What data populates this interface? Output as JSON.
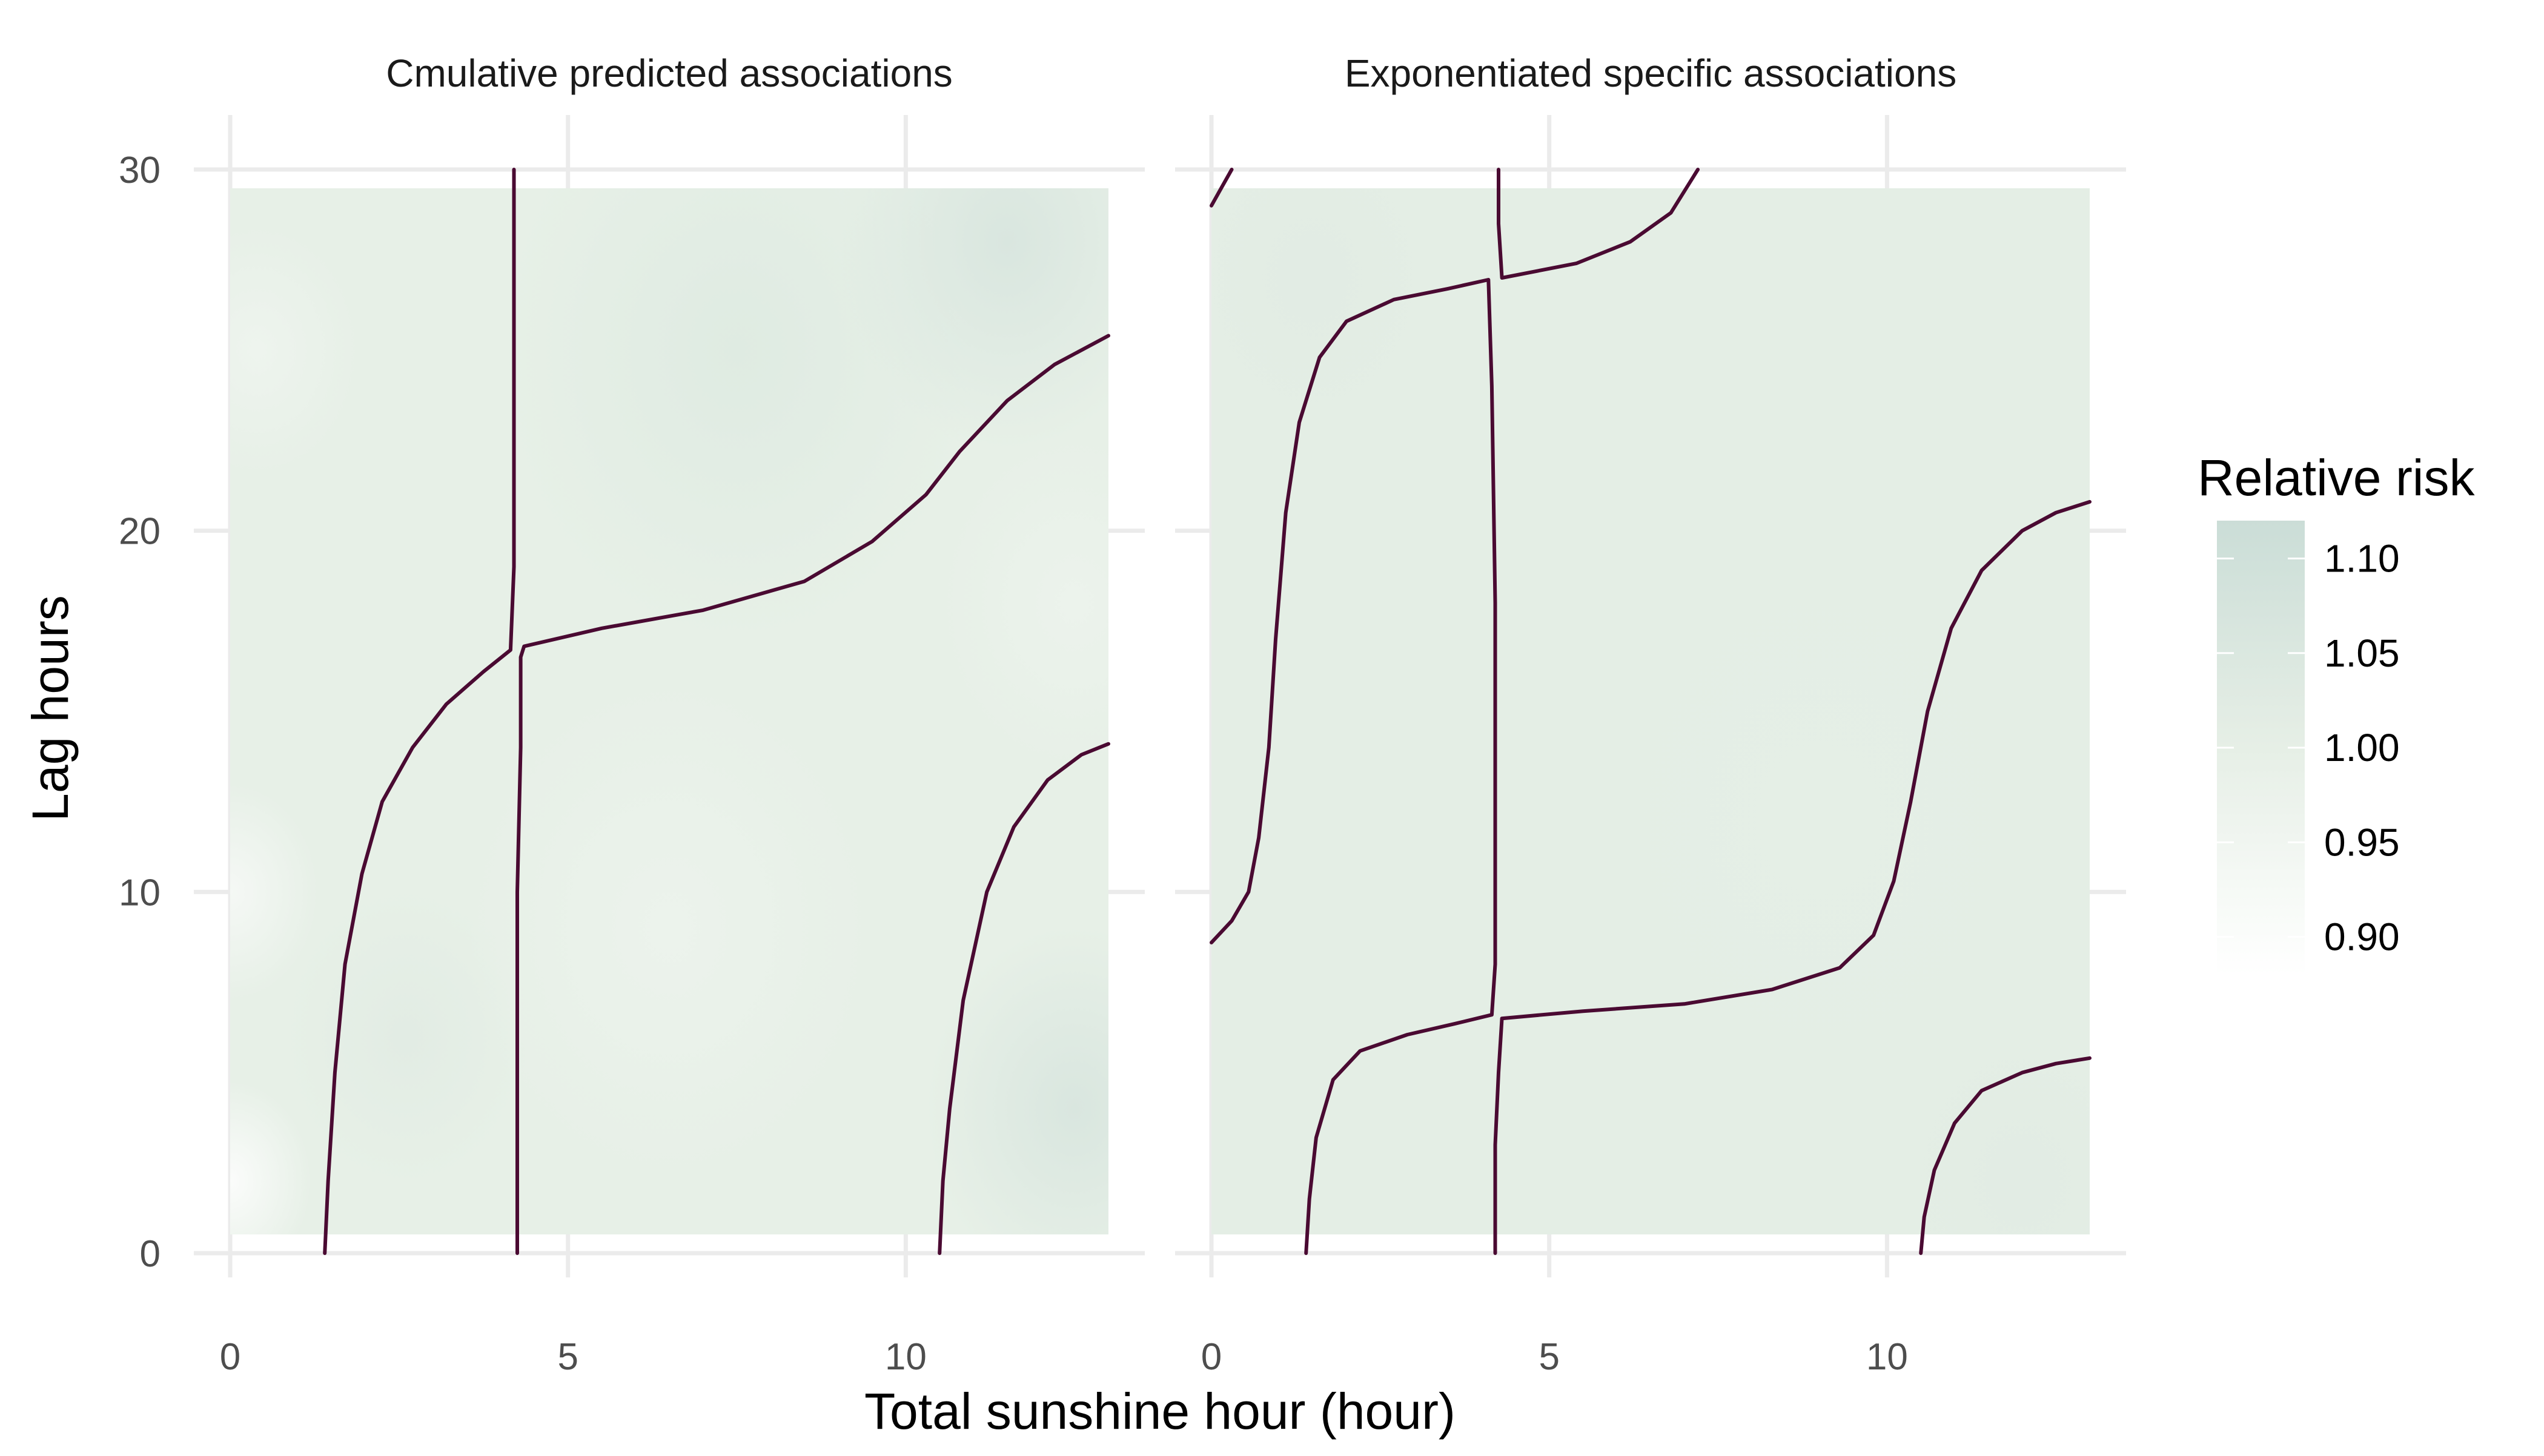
{
  "chart_data": {
    "type": "heatmap",
    "xlabel": "Total sunshine hour (hour)",
    "ylabel": "Lag hours",
    "xlim": [
      0,
      13
    ],
    "ylim": [
      0,
      30
    ],
    "x_ticks": [
      0,
      5,
      10
    ],
    "y_ticks": [
      0,
      10,
      20,
      30
    ],
    "grid": true,
    "legend": {
      "title": "Relative risk",
      "placement": "right",
      "labels": [
        "1.10",
        "1.05",
        "1.00",
        "0.95",
        "0.90"
      ],
      "values": [
        1.1,
        1.05,
        1.0,
        0.95,
        0.9
      ],
      "range": [
        0.88,
        1.12
      ],
      "colors": {
        "low": "#ffffff",
        "mid": "#e6efe6",
        "high": "#cbddd7"
      }
    },
    "contour_color": "#4a0a32",
    "panels": [
      {
        "title": "Cmulative predicted associations",
        "background_value": 0.995,
        "surface": [
          {
            "x": 0.0,
            "y": 2,
            "value": 0.9,
            "r": 1.2
          },
          {
            "x": 0.0,
            "y": 10,
            "value": 0.93,
            "r": 1.3
          },
          {
            "x": 0.4,
            "y": 25,
            "value": 0.96,
            "r": 1.5
          },
          {
            "x": 2.6,
            "y": 6,
            "value": 1.02,
            "r": 1.8
          },
          {
            "x": 6.5,
            "y": 9,
            "value": 0.97,
            "r": 3.0
          },
          {
            "x": 7.5,
            "y": 25,
            "value": 1.03,
            "r": 3.5
          },
          {
            "x": 11.5,
            "y": 28,
            "value": 1.06,
            "r": 2.5
          },
          {
            "x": 12.5,
            "y": 4,
            "value": 1.06,
            "r": 2.2
          },
          {
            "x": 12.5,
            "y": 18,
            "value": 0.97,
            "r": 2.0
          }
        ],
        "contours": [
          [
            [
              1.4,
              0
            ],
            [
              1.45,
              2
            ],
            [
              1.55,
              5
            ],
            [
              1.7,
              8
            ],
            [
              1.95,
              10.5
            ],
            [
              2.25,
              12.5
            ],
            [
              2.7,
              14
            ],
            [
              3.2,
              15.2
            ],
            [
              3.75,
              16.1
            ],
            [
              4.15,
              16.7
            ],
            [
              4.2,
              19
            ],
            [
              4.2,
              22
            ],
            [
              4.2,
              26
            ],
            [
              4.2,
              30
            ]
          ],
          [
            [
              4.25,
              0
            ],
            [
              4.25,
              5
            ],
            [
              4.25,
              10
            ],
            [
              4.3,
              14
            ],
            [
              4.3,
              16.5
            ],
            [
              4.35,
              16.8
            ],
            [
              5.5,
              17.3
            ],
            [
              7.0,
              17.8
            ],
            [
              8.5,
              18.6
            ],
            [
              9.5,
              19.7
            ],
            [
              10.3,
              21.0
            ],
            [
              10.8,
              22.2
            ],
            [
              11.5,
              23.6
            ],
            [
              12.2,
              24.6
            ],
            [
              13.0,
              25.4
            ]
          ],
          [
            [
              10.5,
              0
            ],
            [
              10.55,
              2
            ],
            [
              10.65,
              4
            ],
            [
              10.85,
              7
            ],
            [
              11.2,
              10
            ],
            [
              11.6,
              11.8
            ],
            [
              12.1,
              13.1
            ],
            [
              12.6,
              13.8
            ],
            [
              13.0,
              14.1
            ]
          ]
        ]
      },
      {
        "title": "Exponentiated specific associations",
        "background_value": 1.01,
        "surface": [
          {
            "x": 9.0,
            "y": 12,
            "value": 1.003,
            "r": 3.5
          },
          {
            "x": 1.5,
            "y": 27,
            "value": 1.02,
            "r": 2.0
          },
          {
            "x": 12.0,
            "y": 2,
            "value": 1.02,
            "r": 2.0
          }
        ],
        "contours": [
          [
            [
              0.0,
              29.0
            ],
            [
              0.15,
              29.5
            ],
            [
              0.3,
              30.0
            ]
          ],
          [
            [
              0.0,
              8.6
            ],
            [
              0.3,
              9.2
            ],
            [
              0.55,
              10.0
            ],
            [
              0.7,
              11.5
            ],
            [
              0.85,
              14.0
            ],
            [
              0.95,
              17.0
            ],
            [
              1.1,
              20.5
            ],
            [
              1.3,
              23.0
            ],
            [
              1.6,
              24.8
            ],
            [
              2.0,
              25.8
            ],
            [
              2.7,
              26.4
            ],
            [
              3.5,
              26.7
            ],
            [
              4.1,
              26.95
            ],
            [
              4.15,
              24
            ],
            [
              4.2,
              18
            ],
            [
              4.2,
              12
            ],
            [
              4.2,
              8
            ],
            [
              4.15,
              6.6
            ],
            [
              3.6,
              6.35
            ],
            [
              2.9,
              6.05
            ],
            [
              2.2,
              5.6
            ],
            [
              1.8,
              4.8
            ],
            [
              1.55,
              3.2
            ],
            [
              1.45,
              1.5
            ],
            [
              1.4,
              0
            ]
          ],
          [
            [
              4.25,
              30.0
            ],
            [
              4.25,
              28.5
            ],
            [
              4.3,
              27.0
            ],
            [
              5.4,
              27.4
            ],
            [
              6.2,
              28.0
            ],
            [
              6.8,
              28.8
            ],
            [
              7.2,
              30.0
            ]
          ],
          [
            [
              4.2,
              0
            ],
            [
              4.2,
              3
            ],
            [
              4.25,
              5
            ],
            [
              4.3,
              6.5
            ],
            [
              5.5,
              6.7
            ],
            [
              7.0,
              6.9
            ],
            [
              8.3,
              7.3
            ],
            [
              9.3,
              7.9
            ],
            [
              9.8,
              8.8
            ],
            [
              10.1,
              10.3
            ],
            [
              10.35,
              12.5
            ],
            [
              10.6,
              15.0
            ],
            [
              10.95,
              17.3
            ],
            [
              11.4,
              18.9
            ],
            [
              12.0,
              20.0
            ],
            [
              12.5,
              20.5
            ],
            [
              13.0,
              20.8
            ]
          ],
          [
            [
              10.5,
              0
            ],
            [
              10.55,
              1.0
            ],
            [
              10.7,
              2.3
            ],
            [
              11.0,
              3.6
            ],
            [
              11.4,
              4.5
            ],
            [
              12.0,
              5.0
            ],
            [
              12.5,
              5.25
            ],
            [
              13.0,
              5.4
            ]
          ]
        ]
      }
    ]
  }
}
